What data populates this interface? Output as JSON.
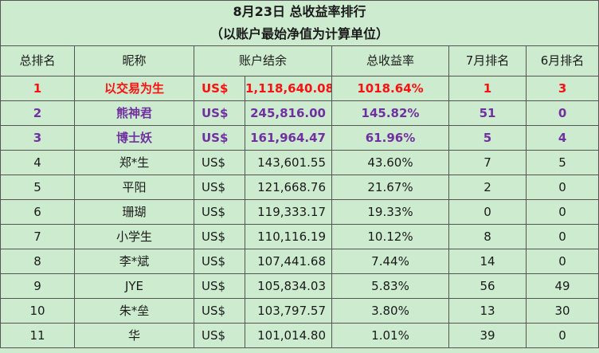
{
  "title": {
    "line1": "8月23日 总收益率排行",
    "line2": "（以账户最始净值为计算单位）"
  },
  "columns": {
    "rank": "总排名",
    "nickname": "昵称",
    "balance": "账户结余",
    "total_return": "总收益率",
    "july_rank": "7月排名",
    "june_rank": "6月排名"
  },
  "colors": {
    "background": "#cdeccf",
    "first_place": "#ff1010",
    "top_three": "#7030a0"
  },
  "rows": [
    {
      "rank": "1",
      "nickname": "以交易为生",
      "currency": "US$",
      "balance": "1,118,640.08",
      "total_return": "1018.64%",
      "july_rank": "1",
      "june_rank": "3"
    },
    {
      "rank": "2",
      "nickname": "熊神君",
      "currency": "US$",
      "balance": "245,816.00",
      "total_return": "145.82%",
      "july_rank": "51",
      "june_rank": "0"
    },
    {
      "rank": "3",
      "nickname": "博士妖",
      "currency": "US$",
      "balance": "161,964.47",
      "total_return": "61.96%",
      "july_rank": "5",
      "june_rank": "4"
    },
    {
      "rank": "4",
      "nickname": "郑*生",
      "currency": "US$",
      "balance": "143,601.55",
      "total_return": "43.60%",
      "july_rank": "7",
      "june_rank": "5"
    },
    {
      "rank": "5",
      "nickname": "平阳",
      "currency": "US$",
      "balance": "121,668.76",
      "total_return": "21.67%",
      "july_rank": "2",
      "june_rank": "0"
    },
    {
      "rank": "6",
      "nickname": "珊瑚",
      "currency": "US$",
      "balance": "119,333.17",
      "total_return": "19.33%",
      "july_rank": "0",
      "june_rank": "0"
    },
    {
      "rank": "7",
      "nickname": "小学生",
      "currency": "US$",
      "balance": "110,116.19",
      "total_return": "10.12%",
      "july_rank": "8",
      "june_rank": "0"
    },
    {
      "rank": "8",
      "nickname": "李*斌",
      "currency": "US$",
      "balance": "107,441.68",
      "total_return": "7.44%",
      "july_rank": "14",
      "june_rank": "0"
    },
    {
      "rank": "9",
      "nickname": "JYE",
      "currency": "US$",
      "balance": "105,834.03",
      "total_return": "5.83%",
      "july_rank": "56",
      "june_rank": "49"
    },
    {
      "rank": "10",
      "nickname": "朱*垒",
      "currency": "US$",
      "balance": "103,797.57",
      "total_return": "3.80%",
      "july_rank": "13",
      "june_rank": "30"
    },
    {
      "rank": "11",
      "nickname": "华",
      "currency": "US$",
      "balance": "101,014.80",
      "total_return": "1.01%",
      "july_rank": "39",
      "june_rank": "0"
    }
  ]
}
